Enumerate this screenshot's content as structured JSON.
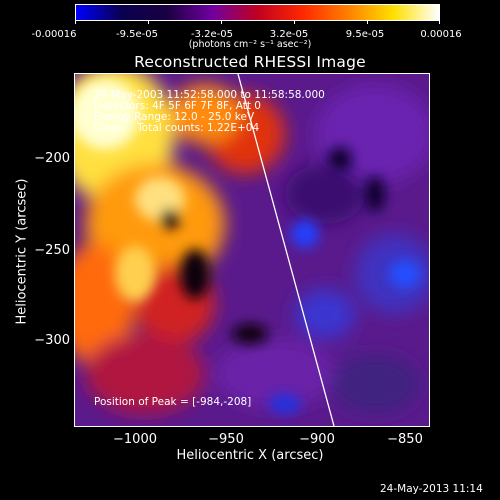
{
  "colorbar": {
    "ticks": [
      "-0.00016",
      "-9.5e-05",
      "-3.2e-05",
      "3.2e-05",
      "9.5e-05",
      "0.00016"
    ],
    "unit": "(photons cm⁻² s⁻¹ asec⁻²)",
    "colors": [
      "#0000ff",
      "#0a0050",
      "#1a0040",
      "#7000a0",
      "#c00020",
      "#ff2800",
      "#ff8000",
      "#ffe000",
      "#ffffff"
    ]
  },
  "title": "Reconstructed RHESSI Image",
  "info": {
    "time": "24-May-2003 11:52:58.000 to 11:58:58.000",
    "detectors": "Detectors: 4F 5F 6F 7F 8F, Att 0",
    "energy": "Energy Range: 12.0 - 25.0 keV",
    "clean": "Clean    Total counts: 1.22E+04"
  },
  "peak": "Position of Peak = [-984,-208]",
  "axes": {
    "xlabel": "Heliocentric X (arcsec)",
    "ylabel": "Heliocentric Y (arcsec)",
    "xticks": [
      "−1000",
      "−950",
      "−900",
      "−850"
    ],
    "yticks": [
      "−200",
      "−250",
      "−300"
    ]
  },
  "timestamp": "24-May-2013 11:14"
}
